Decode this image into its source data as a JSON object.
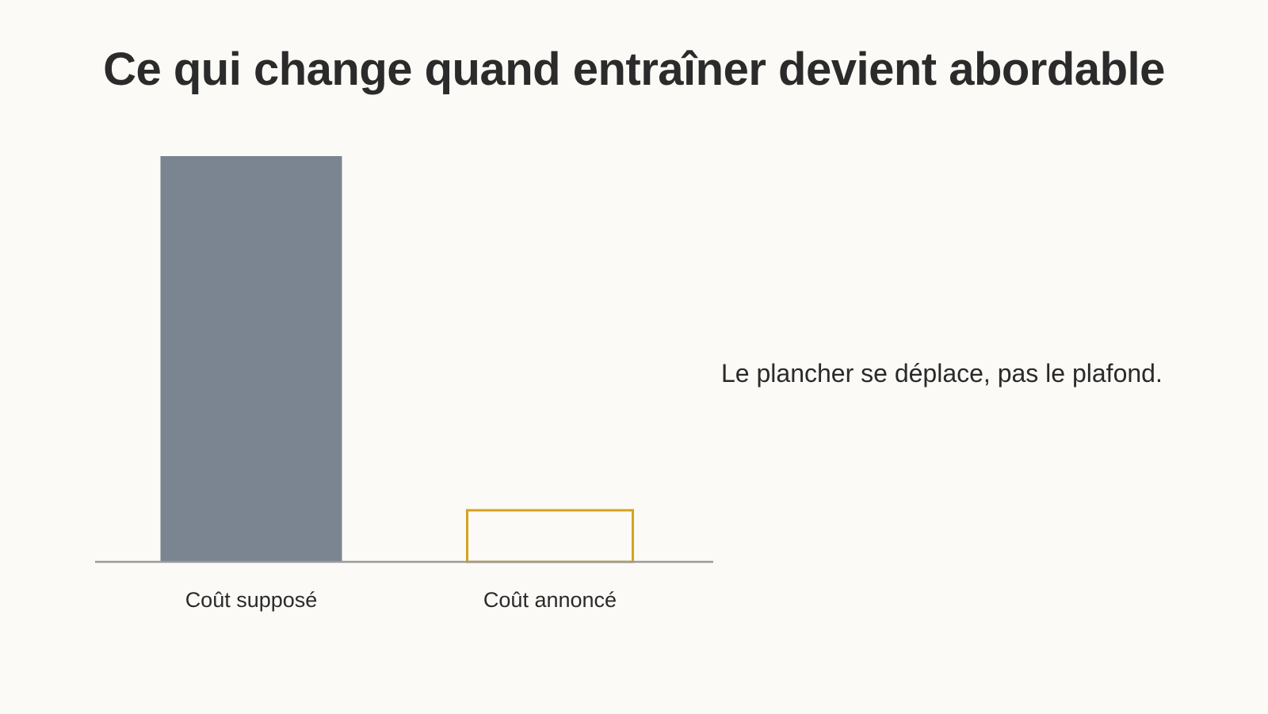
{
  "title": "Ce qui change quand entraîner devient abordable",
  "note": "Le plancher se déplace, pas le plafond.",
  "chart_data": {
    "type": "bar",
    "title": "",
    "xlabel": "",
    "ylabel": "",
    "categories": [
      "Coût supposé",
      "Coût annoncé"
    ],
    "values": [
      100,
      13
    ],
    "ylim": [
      0,
      100
    ],
    "grid": false,
    "axis_ticks": false,
    "styles": [
      {
        "fill": "#7b8491",
        "stroke": "none"
      },
      {
        "fill": "none",
        "stroke": "#d4a31f"
      }
    ],
    "baseline_color": "#9a9a9a"
  }
}
